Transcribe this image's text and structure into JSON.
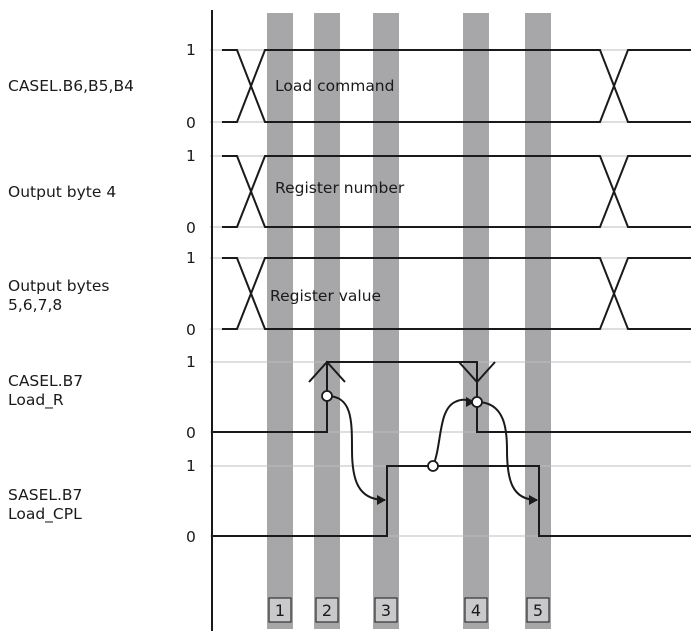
{
  "signals": [
    {
      "id": "casel_b654",
      "lines": [
        "CASEL.B6,B5,B4"
      ],
      "bus_label": "Load command"
    },
    {
      "id": "output_byte_4",
      "lines": [
        "Output byte 4"
      ],
      "bus_label": "Register number"
    },
    {
      "id": "output_bytes_5678",
      "lines": [
        "Output bytes",
        "5,6,7,8"
      ],
      "bus_label": "Register value"
    },
    {
      "id": "casel_b7",
      "lines": [
        "CASEL.B7",
        "Load_R"
      ]
    },
    {
      "id": "sasel_b7",
      "lines": [
        "SASEL.B7",
        "Load_CPL"
      ]
    }
  ],
  "levels": {
    "high": "1",
    "low": "0"
  },
  "steps": [
    "1",
    "2",
    "3",
    "4",
    "5"
  ],
  "colors": {
    "band": "#a7a7a9",
    "line": "#1a1a1a",
    "step_box": "#c9c9cb"
  }
}
